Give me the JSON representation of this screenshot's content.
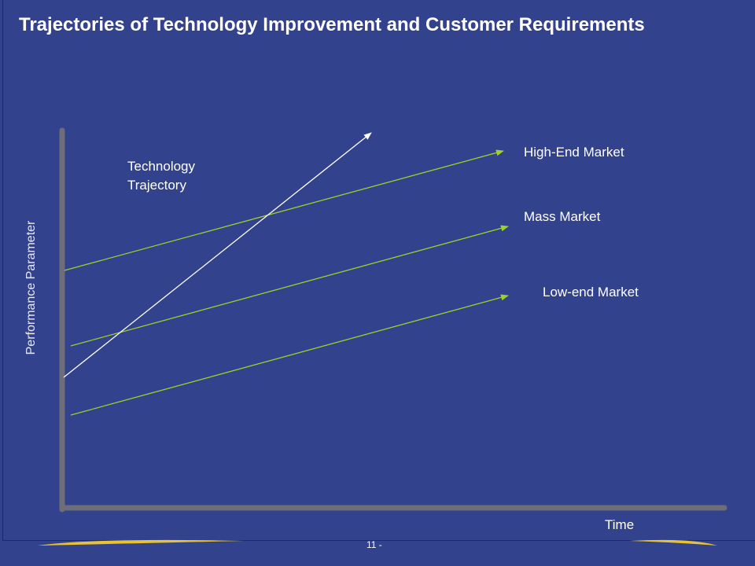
{
  "slide": {
    "title": "Trajectories of Technology Improvement and Customer Requirements",
    "page_number": "11 -"
  },
  "diagram": {
    "y_axis_label": "Performance Parameter",
    "x_axis_label": "Time",
    "technology_label": "Technology\nTrajectory",
    "markets": [
      {
        "label": "High-End Market"
      },
      {
        "label": "Mass Market"
      },
      {
        "label": "Low-end Market"
      }
    ]
  },
  "colors": {
    "background": "#33428c",
    "axis": "#6e6e78",
    "market_line": "#9fcf2a",
    "technology_line": "#ffffff",
    "swoosh": "#e8c233"
  }
}
